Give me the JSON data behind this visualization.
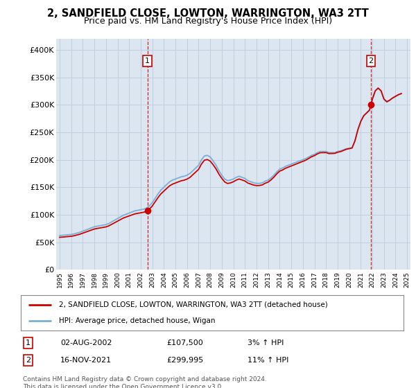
{
  "title": "2, SANDFIELD CLOSE, LOWTON, WARRINGTON, WA3 2TT",
  "subtitle": "Price paid vs. HM Land Registry's House Price Index (HPI)",
  "title_fontsize": 10.5,
  "subtitle_fontsize": 9,
  "background_color": "#ffffff",
  "plot_background": "#dce6f0",
  "grid_color": "#c0cfe0",
  "ylim": [
    0,
    420000
  ],
  "yticks": [
    0,
    50000,
    100000,
    150000,
    200000,
    250000,
    300000,
    350000,
    400000
  ],
  "ytick_labels": [
    "£0",
    "£50K",
    "£100K",
    "£150K",
    "£200K",
    "£250K",
    "£300K",
    "£350K",
    "£400K"
  ],
  "xlim_left": 1994.7,
  "xlim_right": 2025.3,
  "sale1_year": 2002.58,
  "sale1_price": 107500,
  "sale2_year": 2021.87,
  "sale2_price": 299995,
  "legend_line1": "2, SANDFIELD CLOSE, LOWTON, WARRINGTON, WA3 2TT (detached house)",
  "legend_line2": "HPI: Average price, detached house, Wigan",
  "annotation1_date": "02-AUG-2002",
  "annotation1_price": "£107,500",
  "annotation1_hpi": "3% ↑ HPI",
  "annotation2_date": "16-NOV-2021",
  "annotation2_price": "£299,995",
  "annotation2_hpi": "11% ↑ HPI",
  "footnote": "Contains HM Land Registry data © Crown copyright and database right 2024.\nThis data is licensed under the Open Government Licence v3.0.",
  "line_color_red": "#cc0000",
  "line_color_blue": "#7aafd4",
  "marker_color_red": "#cc0000",
  "hpi_data_years": [
    1995.0,
    1995.25,
    1995.5,
    1995.75,
    1996.0,
    1996.25,
    1996.5,
    1996.75,
    1997.0,
    1997.25,
    1997.5,
    1997.75,
    1998.0,
    1998.25,
    1998.5,
    1998.75,
    1999.0,
    1999.25,
    1999.5,
    1999.75,
    2000.0,
    2000.25,
    2000.5,
    2000.75,
    2001.0,
    2001.25,
    2001.5,
    2001.75,
    2002.0,
    2002.25,
    2002.5,
    2002.75,
    2003.0,
    2003.25,
    2003.5,
    2003.75,
    2004.0,
    2004.25,
    2004.5,
    2004.75,
    2005.0,
    2005.25,
    2005.5,
    2005.75,
    2006.0,
    2006.25,
    2006.5,
    2006.75,
    2007.0,
    2007.25,
    2007.5,
    2007.75,
    2008.0,
    2008.25,
    2008.5,
    2008.75,
    2009.0,
    2009.25,
    2009.5,
    2009.75,
    2010.0,
    2010.25,
    2010.5,
    2010.75,
    2011.0,
    2011.25,
    2011.5,
    2011.75,
    2012.0,
    2012.25,
    2012.5,
    2012.75,
    2013.0,
    2013.25,
    2013.5,
    2013.75,
    2014.0,
    2014.25,
    2014.5,
    2014.75,
    2015.0,
    2015.25,
    2015.5,
    2015.75,
    2016.0,
    2016.25,
    2016.5,
    2016.75,
    2017.0,
    2017.25,
    2017.5,
    2017.75,
    2018.0,
    2018.25,
    2018.5,
    2018.75,
    2019.0,
    2019.25,
    2019.5,
    2019.75,
    2020.0,
    2020.25,
    2020.5,
    2020.75,
    2021.0,
    2021.25,
    2021.5,
    2021.75,
    2022.0,
    2022.25,
    2022.5,
    2022.75,
    2023.0,
    2023.25,
    2023.5,
    2023.75,
    2024.0,
    2024.25,
    2024.5
  ],
  "hpi_data_values": [
    62000,
    62500,
    63000,
    63500,
    64000,
    65000,
    66500,
    68000,
    70000,
    72000,
    74000,
    76000,
    78000,
    79000,
    80000,
    81000,
    82000,
    84000,
    87000,
    90000,
    93000,
    96000,
    99000,
    101000,
    103000,
    105000,
    107000,
    108000,
    109000,
    110000,
    112000,
    116000,
    122000,
    130000,
    138000,
    145000,
    150000,
    155000,
    160000,
    163000,
    165000,
    167000,
    169000,
    170000,
    172000,
    175000,
    180000,
    185000,
    190000,
    200000,
    207000,
    208000,
    205000,
    198000,
    190000,
    180000,
    172000,
    165000,
    162000,
    163000,
    165000,
    168000,
    170000,
    168000,
    166000,
    162000,
    160000,
    158000,
    157000,
    157000,
    158000,
    161000,
    163000,
    167000,
    172000,
    178000,
    183000,
    185000,
    188000,
    190000,
    192000,
    194000,
    196000,
    198000,
    200000,
    202000,
    205000,
    208000,
    210000,
    213000,
    215000,
    215000,
    215000,
    213000,
    213000,
    213000,
    215000,
    216000,
    218000,
    220000,
    221000,
    222000,
    235000,
    255000,
    270000,
    280000,
    285000,
    290000,
    310000,
    325000,
    330000,
    325000,
    310000,
    305000,
    308000,
    312000,
    315000,
    318000,
    320000
  ]
}
